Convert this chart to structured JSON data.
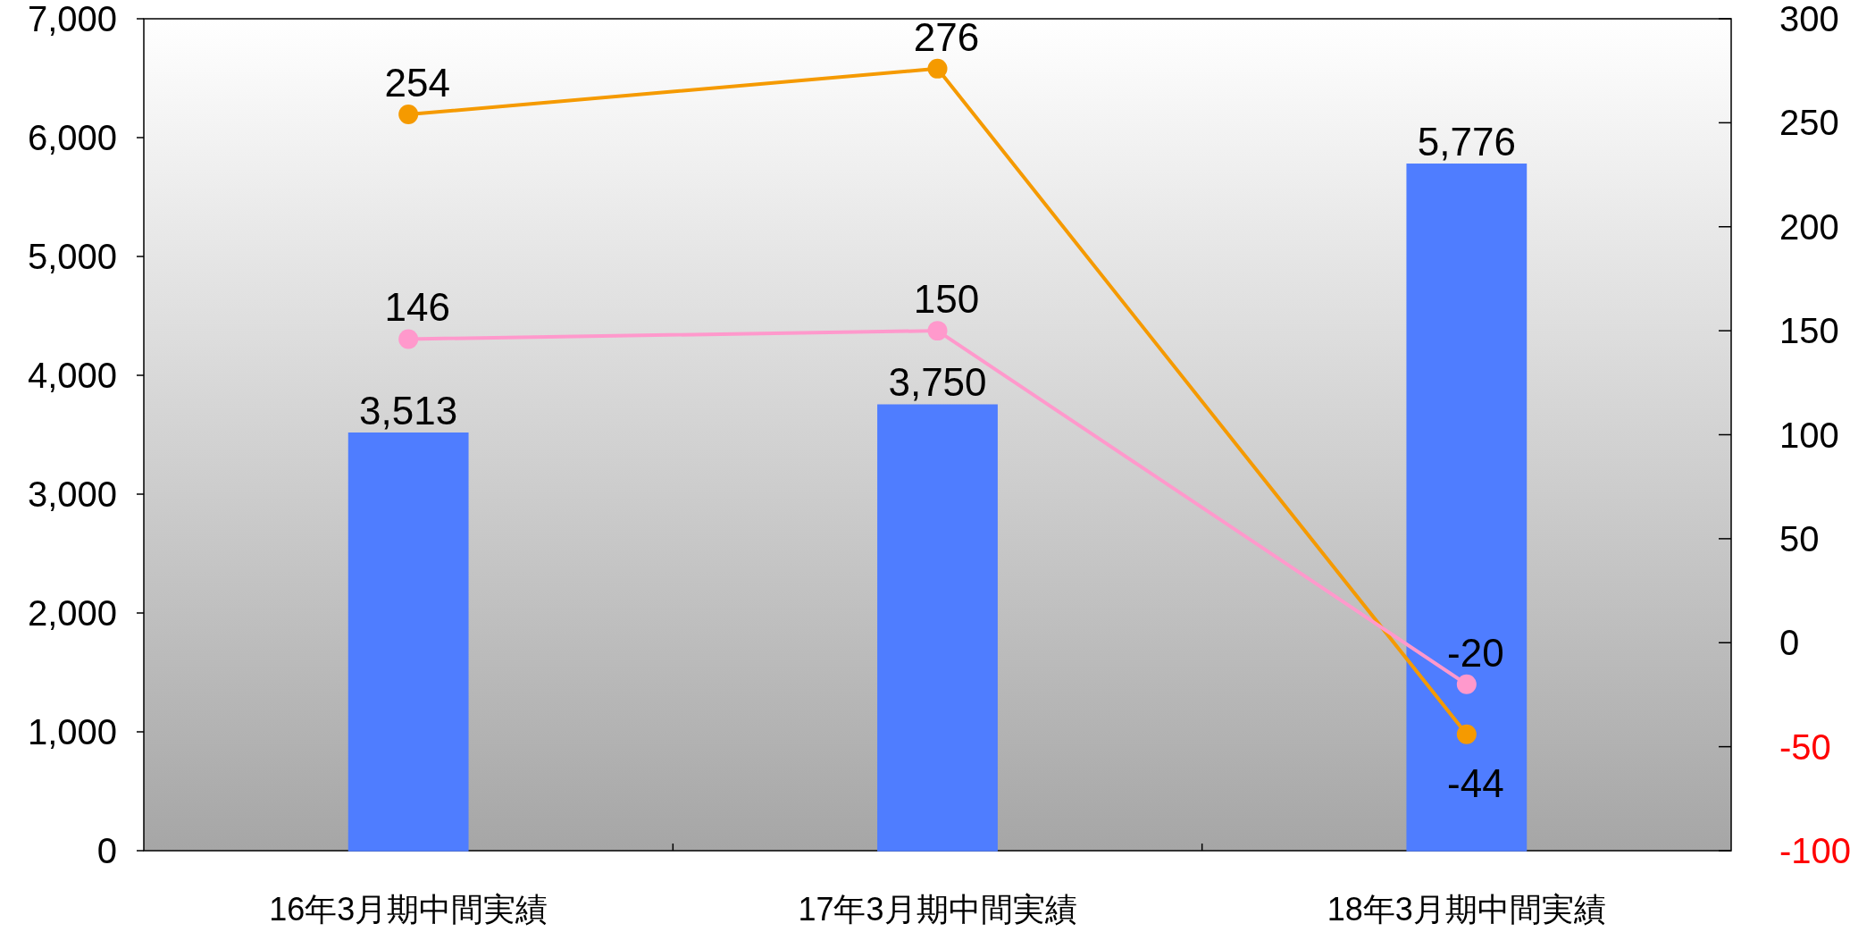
{
  "chart_data": {
    "type": "bar",
    "categories": [
      "16年3月期中間実績",
      "17年3月期中間実績",
      "18年3月期中間実績"
    ],
    "series": [
      {
        "color": "#4f7dff",
        "values": [
          3513,
          3750,
          5776
        ]
      },
      {
        "type": "line",
        "axis": "y2",
        "color": "#f59a00",
        "values": [
          254,
          276,
          -44
        ]
      },
      {
        "type": "line",
        "axis": "y2",
        "color": "#ff99cc",
        "values": [
          146,
          150,
          -20
        ]
      }
    ],
    "ylim": [
      0,
      7000
    ],
    "yticks": [
      {
        "value": 0,
        "label": "0"
      },
      {
        "value": 1000,
        "label": "1,000"
      },
      {
        "value": 2000,
        "label": "2,000"
      },
      {
        "value": 3000,
        "label": "3,000"
      },
      {
        "value": 4000,
        "label": "4,000"
      },
      {
        "value": 5000,
        "label": "5,000"
      },
      {
        "value": 6000,
        "label": "6,000"
      },
      {
        "value": 7000,
        "label": "7,000"
      }
    ],
    "y2lim": [
      -100,
      300
    ],
    "y2ticks": [
      {
        "value": -100,
        "label": "-100"
      },
      {
        "value": -50,
        "label": "-50"
      },
      0,
      50,
      100,
      150,
      200,
      250,
      300
    ],
    "value_labels": [
      [
        "3,513",
        "3,750",
        "5,776"
      ],
      [
        "254",
        "276",
        "-44"
      ],
      [
        "146",
        "150",
        "-20"
      ]
    ],
    "marker": "circle",
    "grid": false
  }
}
